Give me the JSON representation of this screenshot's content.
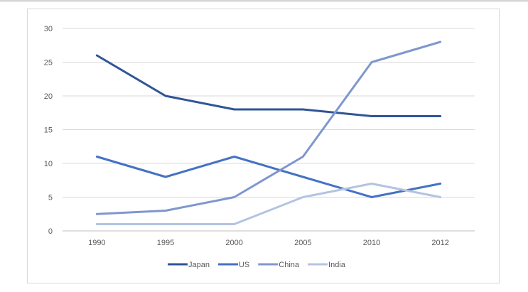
{
  "chart_data": {
    "type": "line",
    "title": "",
    "xlabel": "",
    "ylabel": "",
    "categories": [
      "1990",
      "1995",
      "2000",
      "2005",
      "2010",
      "2012"
    ],
    "ylim": [
      0,
      30
    ],
    "yticks": [
      0,
      5,
      10,
      15,
      20,
      25,
      30
    ],
    "grid": true,
    "legend_position": "bottom",
    "series": [
      {
        "name": "Japan",
        "color": "#2f5597",
        "values": [
          26,
          20,
          18,
          18,
          17,
          17
        ]
      },
      {
        "name": "US",
        "color": "#4472c4",
        "values": [
          11,
          8,
          11,
          8,
          5,
          7
        ]
      },
      {
        "name": "China",
        "color": "#7f97cf",
        "values": [
          2.5,
          3,
          5,
          11,
          25,
          28
        ]
      },
      {
        "name": "India",
        "color": "#b4c3e3",
        "values": [
          1,
          1,
          1,
          5,
          7,
          5
        ]
      }
    ]
  }
}
